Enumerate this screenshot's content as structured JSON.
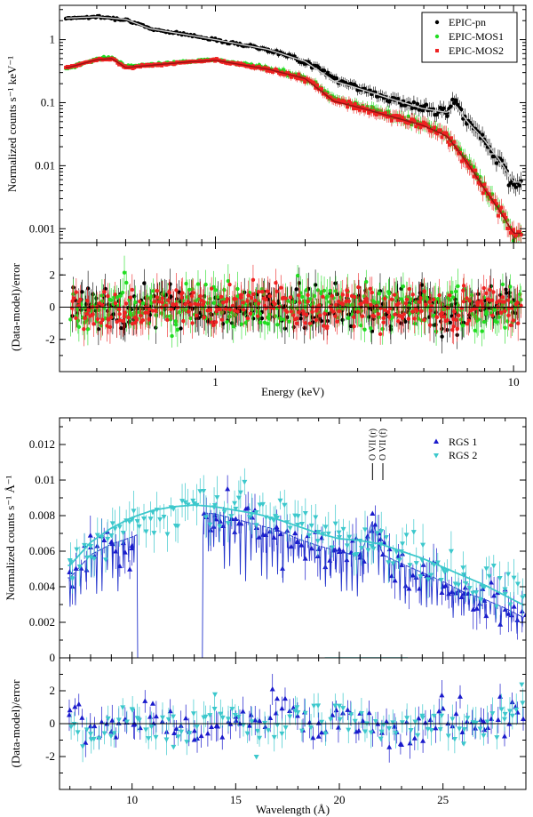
{
  "chart_data": [
    {
      "type": "scatter",
      "panel": "EPIC spectrum",
      "xlabel": "Energy (keV)",
      "ylabel": "Normalized counts s⁻¹ keV⁻¹",
      "xscale": "log",
      "yscale": "log",
      "xlim": [
        0.3,
        11
      ],
      "ylim": [
        0.0006,
        3.5
      ],
      "x_ticks": [
        {
          "v": 1,
          "label": "1"
        },
        {
          "v": 10,
          "label": "10"
        }
      ],
      "y_ticks": [
        {
          "v": 0.001,
          "label": "0.001"
        },
        {
          "v": 0.01,
          "label": "0.01"
        },
        {
          "v": 0.1,
          "label": "0.1"
        },
        {
          "v": 1,
          "label": "1"
        }
      ],
      "legend_position": "top-right",
      "series": [
        {
          "name": "EPIC-pn",
          "color": "#000000",
          "marker": "circle",
          "x": [
            0.32,
            0.4,
            0.5,
            0.6,
            0.8,
            1.0,
            1.5,
            2.0,
            2.5,
            3.0,
            4.0,
            5.0,
            6.0,
            6.4,
            7.0,
            8.0,
            9.0,
            10.0
          ],
          "y": [
            2.2,
            2.3,
            2.1,
            1.5,
            1.2,
            1.0,
            0.7,
            0.45,
            0.25,
            0.17,
            0.11,
            0.08,
            0.07,
            0.11,
            0.05,
            0.025,
            0.012,
            0.005
          ],
          "model": [
            2.2,
            2.3,
            2.1,
            1.5,
            1.2,
            1.0,
            0.7,
            0.45,
            0.22,
            0.17,
            0.11,
            0.08,
            0.07,
            0.09,
            0.05,
            0.025,
            0.012,
            0.0055
          ]
        },
        {
          "name": "EPIC-MOS1",
          "color": "#22dd22",
          "marker": "circle",
          "x": [
            0.32,
            0.4,
            0.45,
            0.5,
            0.6,
            0.8,
            1.0,
            1.5,
            2.0,
            2.5,
            3.0,
            4.0,
            5.0,
            6.0,
            7.0,
            8.0,
            9.0,
            10.0
          ],
          "y": [
            0.35,
            0.5,
            0.52,
            0.38,
            0.4,
            0.45,
            0.48,
            0.35,
            0.25,
            0.12,
            0.09,
            0.06,
            0.045,
            0.03,
            0.012,
            0.0045,
            0.002,
            0.0008
          ],
          "model": [
            0.35,
            0.5,
            0.52,
            0.38,
            0.4,
            0.45,
            0.48,
            0.35,
            0.25,
            0.11,
            0.09,
            0.06,
            0.045,
            0.03,
            0.012,
            0.0045,
            0.002,
            0.0008
          ]
        },
        {
          "name": "EPIC-MOS2",
          "color": "#ee2222",
          "marker": "square",
          "x": [
            0.32,
            0.4,
            0.45,
            0.5,
            0.6,
            0.8,
            1.0,
            1.5,
            2.0,
            2.5,
            3.0,
            4.0,
            5.0,
            6.0,
            7.0,
            8.0,
            9.0,
            10.0
          ],
          "y": [
            0.36,
            0.48,
            0.5,
            0.36,
            0.39,
            0.44,
            0.47,
            0.34,
            0.24,
            0.11,
            0.085,
            0.058,
            0.043,
            0.029,
            0.011,
            0.0042,
            0.0019,
            0.00085
          ],
          "model": [
            0.36,
            0.48,
            0.5,
            0.36,
            0.39,
            0.44,
            0.47,
            0.34,
            0.24,
            0.105,
            0.085,
            0.058,
            0.043,
            0.029,
            0.011,
            0.0042,
            0.0019,
            0.00085
          ]
        }
      ]
    },
    {
      "type": "scatter",
      "panel": "EPIC residuals",
      "xlabel": "Energy (keV)",
      "ylabel": "(Data-model)/error",
      "xscale": "log",
      "xlim": [
        0.3,
        11
      ],
      "ylim": [
        -4,
        4
      ],
      "y_ticks": [
        {
          "v": -2,
          "label": "-2"
        },
        {
          "v": 0,
          "label": "0"
        },
        {
          "v": 2,
          "label": "2"
        }
      ],
      "reference_line": 0,
      "series": [
        {
          "name": "EPIC-pn",
          "color": "#000000",
          "x": [
            0.35,
            0.5,
            0.7,
            1.0,
            1.5,
            2.0,
            3.0,
            4.0,
            5.0,
            6.0,
            8.0,
            10.0
          ],
          "y": [
            1.0,
            -0.5,
            1.5,
            -1.2,
            0.8,
            -0.6,
            0.4,
            -0.9,
            1.1,
            -1.8,
            0.5,
            0.2
          ]
        },
        {
          "name": "EPIC-MOS1",
          "color": "#22dd22",
          "x": [
            0.35,
            0.5,
            0.7,
            1.0,
            1.5,
            2.0,
            3.0,
            4.0,
            5.0,
            6.0,
            8.0,
            10.0
          ],
          "y": [
            -0.8,
            1.2,
            -1.0,
            2.0,
            -1.4,
            1.1,
            -0.7,
            1.6,
            -1.2,
            0.9,
            -1.5,
            0.6
          ]
        },
        {
          "name": "EPIC-MOS2",
          "color": "#ee2222",
          "x": [
            0.35,
            0.5,
            0.7,
            1.0,
            1.5,
            2.0,
            3.0,
            4.0,
            5.0,
            6.0,
            8.0,
            10.0
          ],
          "y": [
            0.4,
            -1.5,
            0.9,
            -0.4,
            1.3,
            -1.0,
            0.8,
            -0.3,
            0.6,
            -1.1,
            1.0,
            -0.5
          ]
        }
      ]
    },
    {
      "type": "line",
      "panel": "RGS spectrum",
      "xlabel": "Wavelength (Å)",
      "ylabel": "Normalized counts s⁻¹ Å⁻¹",
      "xlim": [
        6.5,
        29
      ],
      "ylim": [
        0,
        0.0135
      ],
      "x_ticks": [
        {
          "v": 10,
          "label": "10"
        },
        {
          "v": 15,
          "label": "15"
        },
        {
          "v": 20,
          "label": "20"
        },
        {
          "v": 25,
          "label": "25"
        }
      ],
      "y_ticks": [
        {
          "v": 0,
          "label": "0"
        },
        {
          "v": 0.002,
          "label": "0.002"
        },
        {
          "v": 0.004,
          "label": "0.004"
        },
        {
          "v": 0.006,
          "label": "0.006"
        },
        {
          "v": 0.008,
          "label": "0.008"
        },
        {
          "v": 0.01,
          "label": "0.01"
        },
        {
          "v": 0.012,
          "label": "0.012"
        }
      ],
      "legend_position": "top-right",
      "annotations": [
        "O VII (r)",
        "O VII (f)"
      ],
      "annotation_x": [
        21.6,
        22.1
      ],
      "series": [
        {
          "name": "RGS 1",
          "color": "#1a1acc",
          "marker": "triangle-up",
          "x": [
            7,
            8,
            9,
            10,
            11,
            12,
            13,
            14,
            15,
            16,
            17,
            18,
            19,
            20,
            21,
            21.6,
            22.1,
            23,
            24,
            25,
            26,
            27,
            28,
            29
          ],
          "y": [
            0.0048,
            0.0062,
            0.0065,
            0.0063,
            0.0072,
            0.008,
            0.0083,
            0.008,
            0.0078,
            0.0073,
            0.0072,
            0.0065,
            0.0061,
            0.0061,
            0.0058,
            0.0081,
            0.0058,
            0.0052,
            0.0047,
            0.004,
            0.0036,
            0.0032,
            0.0027,
            0.0024
          ],
          "model": [
            0.0045,
            0.0058,
            0.0064,
            0.0068,
            0.0073,
            0.0078,
            0.0082,
            0.0081,
            0.0078,
            0.0075,
            0.0072,
            0.0067,
            0.0063,
            0.006,
            0.0057,
            0.0077,
            0.0058,
            0.0053,
            0.0048,
            0.0043,
            0.0037,
            0.0033,
            0.0028,
            0.0022
          ]
        },
        {
          "name": "RGS 2",
          "color": "#3cc8cc",
          "marker": "triangle-down",
          "x": [
            7,
            8,
            9,
            10,
            11,
            12,
            13,
            14,
            15,
            16,
            17,
            18,
            19,
            20,
            21,
            22,
            23,
            24,
            25,
            26,
            27,
            28,
            29
          ],
          "y": [
            0.0055,
            0.0063,
            0.0069,
            0.0078,
            0.0082,
            0.0084,
            0.0087,
            0.0086,
            0.0084,
            0.0082,
            0.0079,
            0.0075,
            0.0071,
            0.0068,
            0.0066,
            0.0064,
            0.006,
            0.0055,
            0.005,
            0.0047,
            0.004,
            0.0036,
            0.0035
          ],
          "model": [
            0.0052,
            0.0065,
            0.0073,
            0.0079,
            0.0083,
            0.0085,
            0.0086,
            0.0085,
            0.0083,
            0.0081,
            0.0078,
            0.0074,
            0.007,
            0.0067,
            0.0066,
            0.0064,
            0.006,
            0.0056,
            0.0051,
            0.0046,
            0.0041,
            0.0035,
            0.0029
          ]
        }
      ]
    },
    {
      "type": "scatter",
      "panel": "RGS residuals",
      "xlabel": "Wavelength (Å)",
      "ylabel": "(Data-model)/error",
      "xlim": [
        6.5,
        29
      ],
      "ylim": [
        -4,
        4
      ],
      "y_ticks": [
        {
          "v": -2,
          "label": "-2"
        },
        {
          "v": 0,
          "label": "0"
        },
        {
          "v": 2,
          "label": "2"
        }
      ],
      "reference_line": 0,
      "series": [
        {
          "name": "RGS 1",
          "color": "#1a1acc",
          "x": [
            7,
            9,
            11,
            13,
            15,
            17,
            19,
            21,
            23,
            25,
            27,
            28.5
          ],
          "y": [
            0.8,
            -0.5,
            1.2,
            -1.0,
            0.4,
            1.5,
            -0.8,
            0.6,
            -1.3,
            0.9,
            -0.4,
            1.0
          ]
        },
        {
          "name": "RGS 2",
          "color": "#3cc8cc",
          "x": [
            8,
            10,
            12,
            14,
            16,
            18,
            20,
            22,
            24,
            26,
            28,
            28.8
          ],
          "y": [
            -0.6,
            0.9,
            -1.4,
            1.8,
            -2.0,
            0.7,
            1.1,
            -0.9,
            0.5,
            -1.2,
            0.6,
            2.4
          ]
        }
      ]
    }
  ]
}
